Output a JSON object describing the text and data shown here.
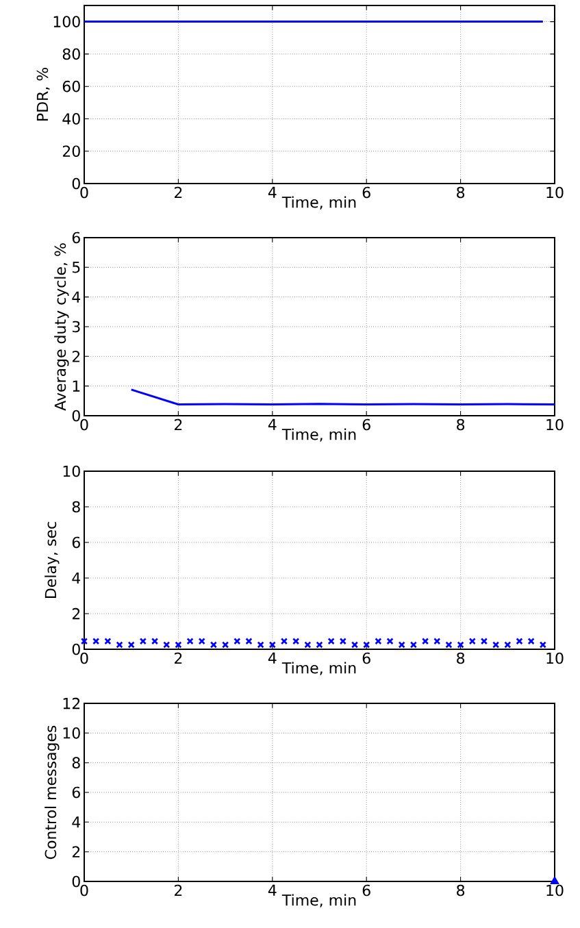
{
  "chart_data": [
    {
      "type": "line",
      "xlabel": "Time, min",
      "ylabel": "PDR, %",
      "color": "#0000ff",
      "x": [
        0,
        9.75
      ],
      "values": [
        100,
        100
      ],
      "xlim": [
        0,
        10
      ],
      "ylim": [
        0,
        110
      ],
      "xticks": [
        0,
        2,
        4,
        6,
        8,
        10
      ],
      "yticks": [
        0,
        20,
        40,
        60,
        80,
        100
      ],
      "grid": true,
      "marker": "none",
      "line_style": "solid"
    },
    {
      "type": "line",
      "xlabel": "Time, min",
      "ylabel": "Average duty cycle, %",
      "color": "#0000ff",
      "x": [
        1,
        2,
        3,
        4,
        5,
        6,
        7,
        8,
        9,
        10
      ],
      "values": [
        0.88,
        0.38,
        0.39,
        0.38,
        0.4,
        0.38,
        0.39,
        0.38,
        0.39,
        0.38
      ],
      "xlim": [
        0,
        10
      ],
      "ylim": [
        0,
        6
      ],
      "xticks": [
        0,
        2,
        4,
        6,
        8,
        10
      ],
      "yticks": [
        0,
        1,
        2,
        3,
        4,
        5,
        6
      ],
      "grid": true,
      "marker": "none",
      "line_style": "solid"
    },
    {
      "type": "scatter",
      "xlabel": "Time, min",
      "ylabel": "Delay, sec",
      "color": "#0000ff",
      "x": [
        0,
        0.25,
        0.5,
        0.75,
        1,
        1.25,
        1.5,
        1.75,
        2,
        2.25,
        2.5,
        2.75,
        3,
        3.25,
        3.5,
        3.75,
        4,
        4.25,
        4.5,
        4.75,
        5,
        5.25,
        5.5,
        5.75,
        6,
        6.25,
        6.5,
        6.75,
        7,
        7.25,
        7.5,
        7.75,
        8,
        8.25,
        8.5,
        8.75,
        9,
        9.25,
        9.5,
        9.75
      ],
      "values": [
        0.45,
        0.45,
        0.45,
        0.25,
        0.25,
        0.45,
        0.45,
        0.25,
        0.25,
        0.45,
        0.45,
        0.25,
        0.25,
        0.45,
        0.45,
        0.25,
        0.25,
        0.45,
        0.45,
        0.25,
        0.25,
        0.45,
        0.45,
        0.25,
        0.25,
        0.45,
        0.45,
        0.25,
        0.25,
        0.45,
        0.45,
        0.25,
        0.25,
        0.45,
        0.45,
        0.25,
        0.25,
        0.45,
        0.45,
        0.25
      ],
      "xlim": [
        0,
        10
      ],
      "ylim": [
        0,
        10
      ],
      "xticks": [
        0,
        2,
        4,
        6,
        8,
        10
      ],
      "yticks": [
        0,
        2,
        4,
        6,
        8,
        10
      ],
      "grid": true,
      "marker": "cross"
    },
    {
      "type": "scatter",
      "xlabel": "Time, min",
      "ylabel": "Control messages",
      "color": "#0000ff",
      "x": [
        10
      ],
      "values": [
        0
      ],
      "xlim": [
        0,
        10
      ],
      "ylim": [
        0,
        12
      ],
      "xticks": [
        0,
        2,
        4,
        6,
        8,
        10
      ],
      "yticks": [
        0,
        2,
        4,
        6,
        8,
        10,
        12
      ],
      "grid": true,
      "marker": "triangle"
    }
  ]
}
